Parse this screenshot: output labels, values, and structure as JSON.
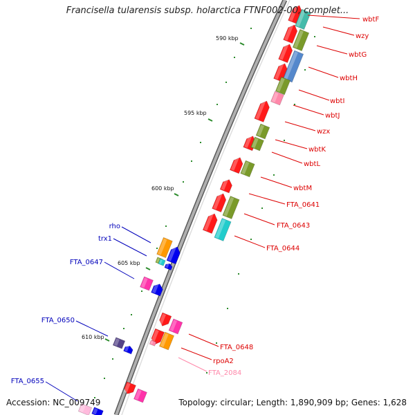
{
  "title": "Francisella tularensis subsp. holarctica FTNF002-00, complet...",
  "footer": {
    "accession": "Accession: NC_009749",
    "summary": "Topology: circular; Length: 1,890,909 bp; Genes: 1,628"
  },
  "colors": {
    "backbone": "#8a8a8a",
    "tick": "#2a8a2a",
    "label_red": "#dd0000",
    "label_blue": "#0000bb",
    "label_pink": "#ff88aa"
  },
  "ticks": [
    {
      "label": "590 kbp"
    },
    {
      "label": "595 kbp"
    },
    {
      "label": "600 kbp"
    },
    {
      "label": "605 kbp"
    },
    {
      "label": "610 kbp"
    }
  ],
  "right_labels": [
    {
      "text": "wbtF",
      "color": "#dd0000"
    },
    {
      "text": "wzy",
      "color": "#dd0000"
    },
    {
      "text": "wbtG",
      "color": "#dd0000"
    },
    {
      "text": "wbtH",
      "color": "#dd0000"
    },
    {
      "text": "wbtI",
      "color": "#dd0000"
    },
    {
      "text": "wbtJ",
      "color": "#dd0000"
    },
    {
      "text": "wzx",
      "color": "#dd0000"
    },
    {
      "text": "wbtK",
      "color": "#dd0000"
    },
    {
      "text": "wbtL",
      "color": "#dd0000"
    },
    {
      "text": "wbtM",
      "color": "#dd0000"
    },
    {
      "text": "FTA_0641",
      "color": "#dd0000"
    },
    {
      "text": "FTA_0643",
      "color": "#dd0000"
    },
    {
      "text": "FTA_0644",
      "color": "#dd0000"
    },
    {
      "text": "FTA_0648",
      "color": "#dd0000"
    },
    {
      "text": "rpoA2",
      "color": "#dd0000"
    },
    {
      "text": "FTA_2084",
      "color": "#ff88aa"
    }
  ],
  "left_labels": [
    {
      "text": "rho",
      "color": "#0000bb"
    },
    {
      "text": "trx1",
      "color": "#0000bb"
    },
    {
      "text": "FTA_0647",
      "color": "#0000bb"
    },
    {
      "text": "FTA_0650",
      "color": "#0000bb"
    },
    {
      "text": "FTA_0655",
      "color": "#0000bb"
    }
  ]
}
